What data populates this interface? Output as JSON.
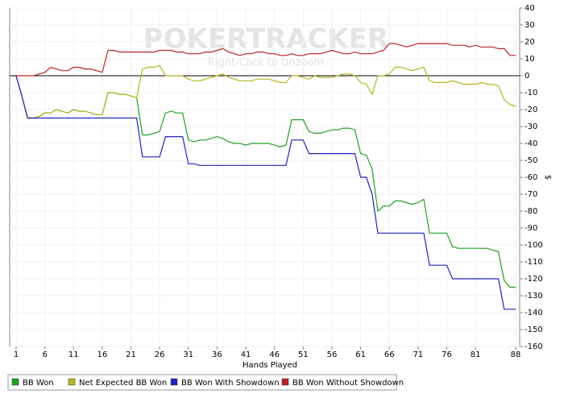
{
  "chart_data": {
    "type": "line",
    "watermark": "POKERTRACKER",
    "watermark_sub": "Right-Click to Unzoom",
    "xlabel": "Hands Played",
    "ylabel": "$",
    "x": [
      1,
      2,
      3,
      4,
      5,
      6,
      7,
      8,
      9,
      10,
      11,
      12,
      13,
      14,
      15,
      16,
      17,
      18,
      19,
      20,
      21,
      22,
      23,
      24,
      25,
      26,
      27,
      28,
      29,
      30,
      31,
      32,
      33,
      34,
      35,
      36,
      37,
      38,
      39,
      40,
      41,
      42,
      43,
      44,
      45,
      46,
      47,
      48,
      49,
      50,
      51,
      52,
      53,
      54,
      55,
      56,
      57,
      58,
      59,
      60,
      61,
      62,
      63,
      64,
      65,
      66,
      67,
      68,
      69,
      70,
      71,
      72,
      73,
      74,
      75,
      76,
      77,
      78,
      79,
      80,
      81,
      82,
      83,
      84,
      85,
      86,
      87,
      88
    ],
    "xlim": [
      0,
      89
    ],
    "xticks": [
      1,
      6,
      11,
      16,
      21,
      26,
      31,
      36,
      41,
      46,
      51,
      56,
      61,
      66,
      71,
      76,
      81,
      88
    ],
    "ylim": [
      -160,
      40
    ],
    "yticks": [
      40,
      30,
      20,
      10,
      0,
      -10,
      -20,
      -30,
      -40,
      -50,
      -60,
      -70,
      -80,
      -90,
      -100,
      -110,
      -120,
      -130,
      -140,
      -150,
      -160
    ],
    "reference_line": 0,
    "grid": true,
    "series": [
      {
        "name": "BB Won",
        "color": "#22a022",
        "values": [
          0,
          -12,
          -25,
          -25,
          -24,
          -22,
          -22,
          -20,
          -21,
          -22,
          -20,
          -21,
          -21,
          -22,
          -23,
          -23,
          -10,
          -10,
          -11,
          -11,
          -12,
          -13,
          -35,
          -35,
          -34,
          -33,
          -22,
          -21,
          -22,
          -22,
          -38,
          -39,
          -38,
          -38,
          -37,
          -36,
          -37,
          -39,
          -40,
          -40,
          -41,
          -40,
          -40,
          -40,
          -40,
          -41,
          -42,
          -41,
          -26,
          -26,
          -26,
          -33,
          -34,
          -34,
          -33,
          -32,
          -32,
          -31,
          -31,
          -32,
          -46,
          -47,
          -55,
          -80,
          -77,
          -77,
          -74,
          -74,
          -75,
          -76,
          -75,
          -73,
          -93,
          -93,
          -93,
          -93,
          -101,
          -102,
          -102,
          -102,
          -102,
          -102,
          -102,
          -103,
          -104,
          -121,
          -125,
          -125
        ]
      },
      {
        "name": "Net Expected BB Won",
        "color": "#b5b520",
        "values": [
          0,
          -12,
          -25,
          -25,
          -24,
          -22,
          -22,
          -20,
          -21,
          -22,
          -20,
          -21,
          -21,
          -22,
          -23,
          -23,
          -10,
          -10,
          -11,
          -11,
          -12,
          -13,
          4,
          5,
          5,
          6,
          0,
          0,
          0,
          0,
          -2,
          -3,
          -3,
          -2,
          -1,
          0,
          1,
          -1,
          -2,
          -3,
          -3,
          -3,
          -2,
          -2,
          -2,
          -3,
          -4,
          -4,
          0,
          0,
          -1,
          -2,
          0,
          -1,
          -1,
          -1,
          0,
          1,
          1,
          0,
          -4,
          -5,
          -11,
          0,
          0,
          1,
          5,
          5,
          4,
          3,
          4,
          5,
          -3,
          -4,
          -4,
          -4,
          -3,
          -4,
          -5,
          -5,
          -5,
          -4,
          -5,
          -5,
          -6,
          -14,
          -17,
          -18
        ]
      },
      {
        "name": "BB Won With Showdown",
        "color": "#2222bb",
        "values": [
          0,
          -12,
          -25,
          -25,
          -25,
          -25,
          -25,
          -25,
          -25,
          -25,
          -25,
          -25,
          -25,
          -25,
          -25,
          -25,
          -25,
          -25,
          -25,
          -25,
          -25,
          -25,
          -48,
          -48,
          -48,
          -48,
          -36,
          -36,
          -36,
          -36,
          -52,
          -52,
          -53,
          -53,
          -53,
          -53,
          -53,
          -53,
          -53,
          -53,
          -53,
          -53,
          -53,
          -53,
          -53,
          -53,
          -53,
          -53,
          -38,
          -38,
          -38,
          -46,
          -46,
          -46,
          -46,
          -46,
          -46,
          -46,
          -46,
          -46,
          -60,
          -60,
          -70,
          -93,
          -93,
          -93,
          -93,
          -93,
          -93,
          -93,
          -93,
          -93,
          -112,
          -112,
          -112,
          -112,
          -120,
          -120,
          -120,
          -120,
          -120,
          -120,
          -120,
          -120,
          -120,
          -138,
          -138,
          -138
        ]
      },
      {
        "name": "BB Won Without Showdown",
        "color": "#bb2222",
        "values": [
          0,
          0,
          0,
          0,
          1,
          2,
          5,
          4,
          3,
          3,
          5,
          5,
          4,
          4,
          3,
          2,
          15,
          15,
          14,
          14,
          14,
          14,
          14,
          14,
          14,
          15,
          15,
          15,
          14,
          14,
          13,
          13,
          13,
          14,
          14,
          15,
          16,
          14,
          13,
          12,
          13,
          13,
          14,
          14,
          13,
          13,
          12,
          12,
          13,
          12,
          12,
          13,
          13,
          13,
          14,
          15,
          14,
          13,
          13,
          14,
          13,
          13,
          13,
          14,
          15,
          19,
          19,
          18,
          17,
          18,
          19,
          19,
          19,
          19,
          19,
          19,
          18,
          18,
          18,
          17,
          18,
          17,
          17,
          17,
          16,
          16,
          12,
          12
        ]
      }
    ]
  }
}
